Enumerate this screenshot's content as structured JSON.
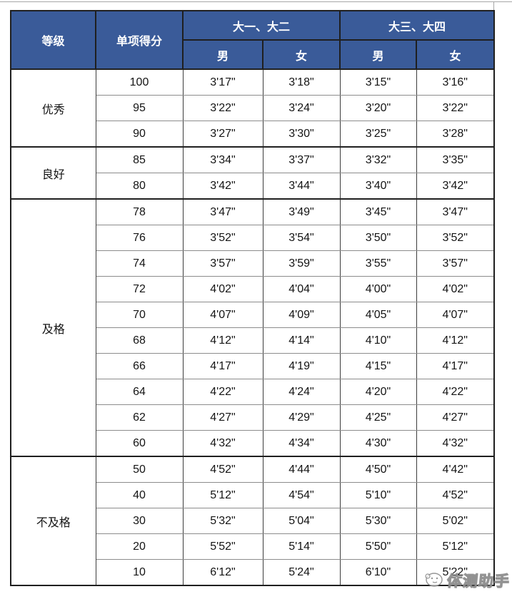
{
  "colors": {
    "header_bg": "#3a5b99",
    "header_text": "#ffffff",
    "outer_border": "#1f1f1f",
    "row_line": "#8c8c8c",
    "column_line": "#3d3d3d",
    "watermark_gray": "#828282"
  },
  "table": {
    "header": {
      "grade": "等级",
      "score": "单项得分",
      "group1": "大一、大二",
      "group2": "大三、大四",
      "male": "男",
      "female": "女"
    },
    "groups": [
      {
        "grade": "优秀",
        "rows": [
          {
            "score": "100",
            "y12_male": "3'17\"",
            "y12_female": "3'18\"",
            "y34_male": "3'15\"",
            "y34_female": "3'16\""
          },
          {
            "score": "95",
            "y12_male": "3'22\"",
            "y12_female": "3'24\"",
            "y34_male": "3'20\"",
            "y34_female": "3'22\""
          },
          {
            "score": "90",
            "y12_male": "3'27\"",
            "y12_female": "3'30\"",
            "y34_male": "3'25\"",
            "y34_female": "3'28\""
          }
        ]
      },
      {
        "grade": "良好",
        "rows": [
          {
            "score": "85",
            "y12_male": "3'34\"",
            "y12_female": "3'37\"",
            "y34_male": "3'32\"",
            "y34_female": "3'35\""
          },
          {
            "score": "80",
            "y12_male": "3'42\"",
            "y12_female": "3'44\"",
            "y34_male": "3'40\"",
            "y34_female": "3'42\""
          }
        ]
      },
      {
        "grade": "及格",
        "rows": [
          {
            "score": "78",
            "y12_male": "3'47\"",
            "y12_female": "3'49\"",
            "y34_male": "3'45\"",
            "y34_female": "3'47\""
          },
          {
            "score": "76",
            "y12_male": "3'52\"",
            "y12_female": "3'54\"",
            "y34_male": "3'50\"",
            "y34_female": "3'52\""
          },
          {
            "score": "74",
            "y12_male": "3'57\"",
            "y12_female": "3'59\"",
            "y34_male": "3'55\"",
            "y34_female": "3'57\""
          },
          {
            "score": "72",
            "y12_male": "4'02\"",
            "y12_female": "4'04\"",
            "y34_male": "4'00\"",
            "y34_female": "4'02\""
          },
          {
            "score": "70",
            "y12_male": "4'07\"",
            "y12_female": "4'09\"",
            "y34_male": "4'05\"",
            "y34_female": "4'07\""
          },
          {
            "score": "68",
            "y12_male": "4'12\"",
            "y12_female": "4'14\"",
            "y34_male": "4'10\"",
            "y34_female": "4'12\""
          },
          {
            "score": "66",
            "y12_male": "4'17\"",
            "y12_female": "4'19\"",
            "y34_male": "4'15\"",
            "y34_female": "4'17\""
          },
          {
            "score": "64",
            "y12_male": "4'22\"",
            "y12_female": "4'24\"",
            "y34_male": "4'20\"",
            "y34_female": "4'22\""
          },
          {
            "score": "62",
            "y12_male": "4'27\"",
            "y12_female": "4'29\"",
            "y34_male": "4'25\"",
            "y34_female": "4'27\""
          },
          {
            "score": "60",
            "y12_male": "4'32\"",
            "y12_female": "4'34\"",
            "y34_male": "4'30\"",
            "y34_female": "4'32\""
          }
        ]
      },
      {
        "grade": "不及格",
        "rows": [
          {
            "score": "50",
            "y12_male": "4'52\"",
            "y12_female": "4'44\"",
            "y34_male": "4'50\"",
            "y34_female": "4'42\""
          },
          {
            "score": "40",
            "y12_male": "5'12\"",
            "y12_female": "4'54\"",
            "y34_male": "5'10\"",
            "y34_female": "4'52\""
          },
          {
            "score": "30",
            "y12_male": "5'32\"",
            "y12_female": "5'04\"",
            "y34_male": "5'30\"",
            "y34_female": "5'02\""
          },
          {
            "score": "20",
            "y12_male": "5'52\"",
            "y12_female": "5'14\"",
            "y34_male": "5'50\"",
            "y34_female": "5'12\""
          },
          {
            "score": "10",
            "y12_male": "6'12\"",
            "y12_female": "5'24\"",
            "y34_male": "6'10\"",
            "y34_female": "5'22\""
          }
        ]
      }
    ]
  },
  "watermark": {
    "text": "体测助手"
  }
}
